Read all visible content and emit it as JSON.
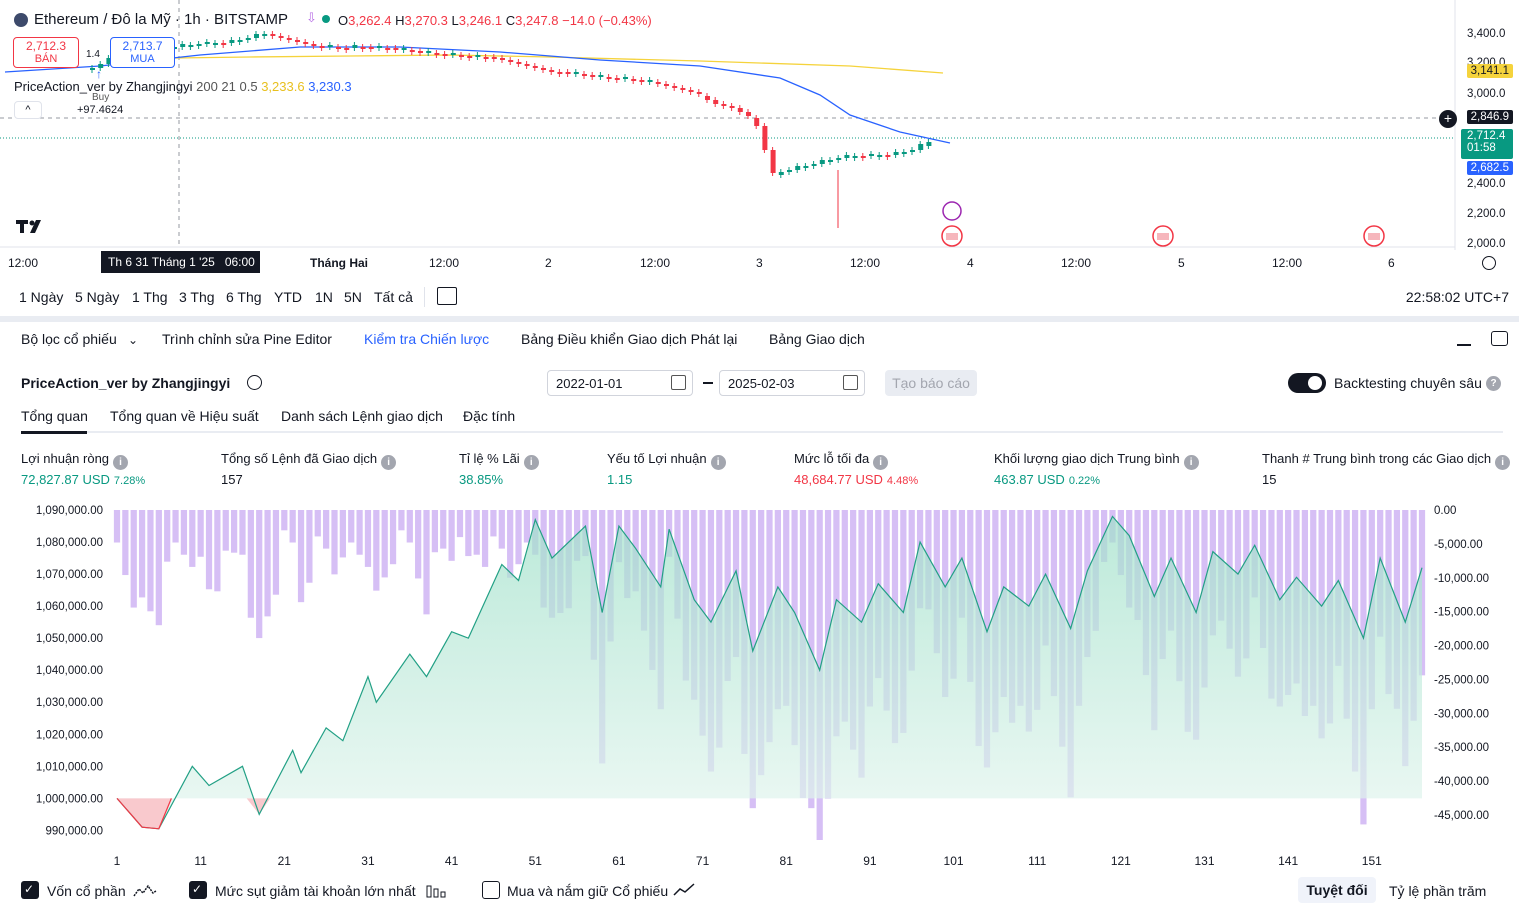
{
  "chart_header": {
    "symbol": "Ethereum / Đô la Mỹ · 1h · BITSTAMP",
    "o_label": "O",
    "o": "3,262.4",
    "h_label": "H",
    "h": "3,270.3",
    "l_label": "L",
    "l": "3,246.1",
    "c_label": "C",
    "c": "3,247.8",
    "change": "−14.0 (−0.43%)",
    "sell_price": "2,712.3",
    "sell_label": "BÁN",
    "spread": "1.4",
    "buy_price": "2,713.7",
    "buy_label": "MUA",
    "buy_marker_label": "Buy",
    "buy_marker_value": "+97.4624",
    "indicator_name": "PriceAction_ver by Zhangjingyi",
    "indicator_params": "200 21 0.5",
    "indicator_v1": "3,233.6",
    "indicator_v2": "3,230.3"
  },
  "price_axis": {
    "ticks": [
      "3,400.0",
      "3,200.0",
      "3,000.0",
      "2,400.0",
      "2,200.0",
      "2,000.0"
    ],
    "tag_ma": "3,141.1",
    "tag_crosshair": "2,846.9",
    "tag_last": "2,712.4",
    "tag_countdown": "01:58",
    "tag_ma2": "2,682.5"
  },
  "time_axis": {
    "ticks": [
      "12:00",
      "Tháng Hai",
      "12:00",
      "2",
      "12:00",
      "3",
      "12:00",
      "4",
      "12:00",
      "5",
      "12:00",
      "6"
    ],
    "crosshair_label": "Th 6 31 Tháng 1 '25   06:00"
  },
  "timeframes": [
    "1 Ngày",
    "5 Ngày",
    "1 Thg",
    "3 Thg",
    "6 Thg",
    "YTD",
    "1N",
    "5N",
    "Tất cả"
  ],
  "clock": "22:58:02 UTC+7",
  "panel_tabs": [
    "Bộ lọc cổ phiếu",
    "Trình chỉnh sửa Pine Editor",
    "Kiểm tra Chiến lược",
    "Bảng Điều khiển Giao dịch Phát lại",
    "Bảng Giao dịch"
  ],
  "strategy": {
    "name": "PriceAction_ver by Zhangjingyi",
    "date_from": "2022-01-01",
    "date_to": "2025-02-03",
    "report_button": "Tạo báo cáo",
    "deep_backtest_label": "Backtesting chuyên sâu"
  },
  "sub_tabs": [
    "Tổng quan",
    "Tổng quan về Hiệu suất",
    "Danh sách Lệnh giao dịch",
    "Đặc tính"
  ],
  "metrics": [
    {
      "label": "Lợi nhuận ròng",
      "value": "72,827.87 USD",
      "pct": "7.28%",
      "color": "#089981"
    },
    {
      "label": "Tổng số Lệnh đã Giao dịch",
      "value": "157",
      "pct": "",
      "color": "#131722"
    },
    {
      "label": "Tỉ lệ % Lãi",
      "value": "38.85%",
      "pct": "",
      "color": "#089981"
    },
    {
      "label": "Yếu tố Lợi nhuận",
      "value": "1.15",
      "pct": "",
      "color": "#089981"
    },
    {
      "label": "Mức lỗ tối đa",
      "value": "48,684.77 USD",
      "pct": "4.48%",
      "color": "#f23645"
    },
    {
      "label": "Khối lượng giao dịch Trung bình",
      "value": "463.87 USD",
      "pct": "0.22%",
      "color": "#089981"
    },
    {
      "label": "Thanh # Trung bình trong các Giao dịch",
      "value": "15",
      "pct": "",
      "color": "#131722"
    }
  ],
  "chart_data": {
    "type": "area",
    "x_ticks": [
      "1",
      "11",
      "21",
      "31",
      "41",
      "51",
      "61",
      "71",
      "81",
      "91",
      "101",
      "111",
      "121",
      "131",
      "141",
      "151"
    ],
    "y_left_ticks": [
      "1,090,000.00",
      "1,080,000.00",
      "1,070,000.00",
      "1,060,000.00",
      "1,050,000.00",
      "1,040,000.00",
      "1,030,000.00",
      "1,020,000.00",
      "1,010,000.00",
      "1,000,000.00",
      "990,000.00"
    ],
    "y_right_ticks": [
      "0.00",
      "-5,000.00",
      "-10,000.00",
      "-15,000.00",
      "-20,000.00",
      "-25,000.00",
      "-30,000.00",
      "-35,000.00",
      "-40,000.00",
      "-45,000.00"
    ],
    "ylim_left": [
      987000,
      1090000
    ],
    "ylim_right": [
      -48700,
      0
    ],
    "baseline": 1000000,
    "series": [
      {
        "name": "Vốn cổ phần",
        "x": [
          1,
          4,
          6,
          10,
          12,
          16,
          18,
          22,
          23,
          26,
          28,
          31,
          32,
          36,
          38,
          41,
          43,
          47,
          49,
          51,
          53,
          57,
          59,
          61,
          63,
          66,
          67,
          70,
          72,
          75,
          77,
          80,
          82,
          85,
          87,
          90,
          92,
          95,
          97,
          100,
          102,
          105,
          107,
          110,
          112,
          115,
          117,
          120,
          122,
          125,
          127,
          130,
          132,
          135,
          137,
          140,
          142,
          145,
          147,
          150,
          152,
          155,
          157
        ],
        "values": [
          1000000,
          991000,
          990500,
          1010000,
          1004000,
          1010000,
          995000,
          1015000,
          1008000,
          1022000,
          1018000,
          1038000,
          1030000,
          1045000,
          1038000,
          1052000,
          1050000,
          1073000,
          1068000,
          1087000,
          1075000,
          1085000,
          1058000,
          1085000,
          1078000,
          1066000,
          1084000,
          1062000,
          1055000,
          1071000,
          1046000,
          1066000,
          1058000,
          1040000,
          1062000,
          1055000,
          1067000,
          1058000,
          1080000,
          1066000,
          1075000,
          1052000,
          1066000,
          1060000,
          1070000,
          1053000,
          1071000,
          1088000,
          1082000,
          1063000,
          1075000,
          1058000,
          1077000,
          1070000,
          1079000,
          1062000,
          1069000,
          1060000,
          1068000,
          1050000,
          1075000,
          1055000,
          1072000
        ]
      },
      {
        "name": "Mức sụt giảm tài khoản lớn nhất"
      }
    ]
  },
  "legend": {
    "equity": "Vốn cổ phần",
    "drawdown": "Mức sụt giảm tài khoản lớn nhất",
    "buyhold": "Mua và nắm giữ Cổ phiếu",
    "absolute": "Tuyệt đối",
    "percent": "Tỷ lệ phần trăm"
  },
  "colors": {
    "up": "#089981",
    "down": "#f23645",
    "blue": "#2962ff",
    "drawdown": "#d6bff5",
    "equity_fill": "#d2efe6",
    "ma_yellow": "#f5d33c"
  }
}
